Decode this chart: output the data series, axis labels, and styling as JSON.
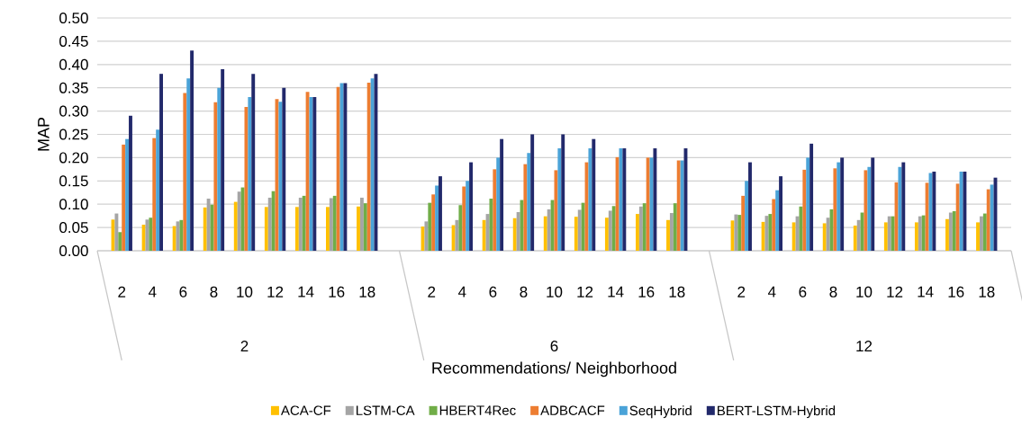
{
  "chart_data": {
    "type": "bar",
    "categories": [
      "2",
      "4",
      "6",
      "8",
      "10",
      "12",
      "14",
      "16",
      "18",
      "2",
      "4",
      "6",
      "8",
      "10",
      "12",
      "14",
      "16",
      "18",
      "2",
      "4",
      "6",
      "8",
      "10",
      "12",
      "14",
      "16",
      "18"
    ],
    "series": [
      {
        "name": "ACA-CF",
        "color": "#ffc000",
        "values": [
          0.067,
          0.056,
          0.053,
          0.093,
          0.105,
          0.094,
          0.094,
          0.094,
          0.095,
          0.052,
          0.055,
          0.066,
          0.07,
          0.074,
          0.073,
          0.071,
          0.079,
          0.066,
          0.065,
          0.062,
          0.061,
          0.059,
          0.054,
          0.061,
          0.061,
          0.068,
          0.061
        ]
      },
      {
        "name": "LSTM-CA",
        "color": "#a5a5a5",
        "values": [
          0.08,
          0.067,
          0.063,
          0.112,
          0.127,
          0.114,
          0.114,
          0.113,
          0.114,
          0.063,
          0.066,
          0.079,
          0.083,
          0.089,
          0.088,
          0.086,
          0.095,
          0.081,
          0.078,
          0.075,
          0.074,
          0.071,
          0.066,
          0.074,
          0.074,
          0.082,
          0.074
        ]
      },
      {
        "name": "HBERT4Rec",
        "color": "#70ad47",
        "values": [
          0.04,
          0.071,
          0.066,
          0.099,
          0.136,
          0.128,
          0.118,
          0.118,
          0.102,
          0.103,
          0.098,
          0.112,
          0.109,
          0.109,
          0.103,
          0.096,
          0.102,
          0.102,
          0.077,
          0.079,
          0.095,
          0.089,
          0.082,
          0.074,
          0.076,
          0.085,
          0.08
        ]
      },
      {
        "name": "ADBCACF",
        "color": "#ed7d31",
        "values": [
          0.228,
          0.242,
          0.339,
          0.319,
          0.309,
          0.326,
          0.341,
          0.352,
          0.361,
          0.121,
          0.138,
          0.175,
          0.186,
          0.173,
          0.19,
          0.201,
          0.2,
          0.194,
          0.118,
          0.111,
          0.174,
          0.177,
          0.173,
          0.147,
          0.146,
          0.144,
          0.132
        ]
      },
      {
        "name": "SeqHybrid",
        "color": "#4aa3d8",
        "values": [
          0.24,
          0.26,
          0.37,
          0.35,
          0.33,
          0.32,
          0.33,
          0.36,
          0.37,
          0.14,
          0.15,
          0.2,
          0.21,
          0.22,
          0.22,
          0.22,
          0.2,
          0.194,
          0.15,
          0.13,
          0.2,
          0.19,
          0.18,
          0.18,
          0.167,
          0.17,
          0.142
        ]
      },
      {
        "name": "BERT-LSTM-Hybrid",
        "color": "#22296b",
        "values": [
          0.29,
          0.38,
          0.43,
          0.39,
          0.38,
          0.35,
          0.33,
          0.36,
          0.38,
          0.16,
          0.19,
          0.24,
          0.25,
          0.25,
          0.24,
          0.22,
          0.22,
          0.22,
          0.19,
          0.16,
          0.23,
          0.2,
          0.2,
          0.19,
          0.17,
          0.17,
          0.157
        ]
      }
    ],
    "xlabel": "Recommendations/ Neighborhood",
    "ylabel": "MAP",
    "ylim": [
      0,
      0.5
    ],
    "yticks": [
      {
        "value": 0,
        "label": "0.00"
      },
      {
        "value": 0.05,
        "label": "0.05"
      },
      {
        "value": 0.1,
        "label": "0.10"
      },
      {
        "value": 0.15,
        "label": "0.15"
      },
      {
        "value": 0.2,
        "label": "0.20"
      },
      {
        "value": 0.25,
        "label": "0.25"
      },
      {
        "value": 0.3,
        "label": "0.30"
      },
      {
        "value": 0.35,
        "label": "0.35"
      },
      {
        "value": 0.4,
        "label": "0.40"
      },
      {
        "value": 0.45,
        "label": "0.45"
      },
      {
        "value": 0.5,
        "label": "0.50"
      }
    ],
    "grid": "y",
    "legend": "bottom",
    "annotations": [
      "2",
      "6",
      "12"
    ]
  }
}
